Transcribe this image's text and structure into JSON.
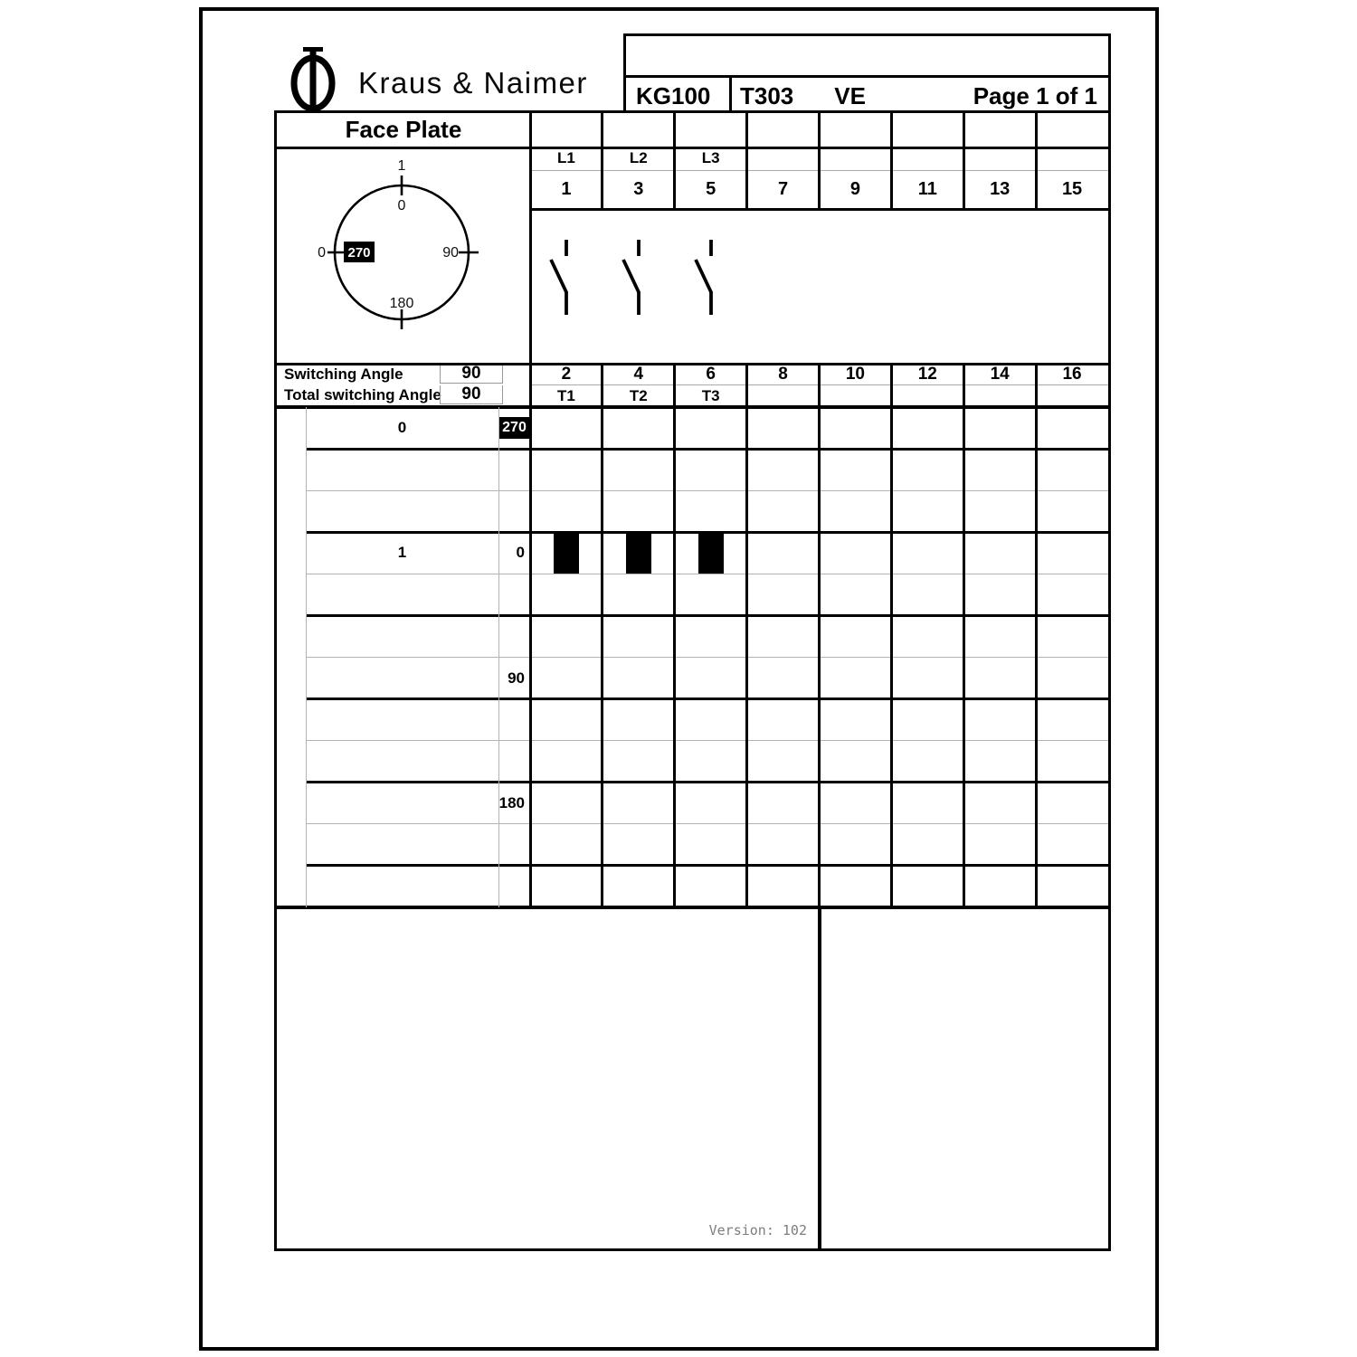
{
  "brand": {
    "name": "Kraus & Naimer"
  },
  "title_block": {
    "model": "KG100",
    "switch_type": "T303",
    "variant": "VE",
    "page": "Page 1 of 1"
  },
  "face_plate": {
    "title": "Face Plate"
  },
  "dial": {
    "position_top": "1",
    "angle_top": "0",
    "angle_right": "90",
    "angle_bottom": "180",
    "angle_left_highlighted": "270",
    "position_left": "0"
  },
  "angles": {
    "switching_label": "Switching Angle",
    "switching_value": "90",
    "total_label": "Total switching Angle",
    "total_value": "90"
  },
  "terminals": {
    "phase_labels": [
      "L1",
      "L2",
      "L3",
      "",
      "",
      "",
      "",
      ""
    ],
    "top_terminals": [
      "1",
      "3",
      "5",
      "7",
      "9",
      "11",
      "13",
      "15"
    ],
    "bottom_terminals": [
      "2",
      "4",
      "6",
      "8",
      "10",
      "12",
      "14",
      "16"
    ],
    "load_labels": [
      "T1",
      "T2",
      "T3",
      "",
      "",
      "",
      "",
      ""
    ],
    "contact_symbol_columns": [
      0,
      1,
      2
    ]
  },
  "switching_diagram": {
    "row_count": 12,
    "positions": [
      {
        "row_index": 0,
        "position_label": "0",
        "angle_label": "270",
        "angle_highlighted": true,
        "closed_contacts": []
      },
      {
        "row_index": 3,
        "position_label": "1",
        "angle_label": "0",
        "angle_highlighted": false,
        "closed_contacts": [
          0,
          1,
          2
        ]
      },
      {
        "row_index": 6,
        "position_label": "",
        "angle_label": "90",
        "angle_highlighted": false,
        "closed_contacts": []
      },
      {
        "row_index": 9,
        "position_label": "",
        "angle_label": "180",
        "angle_highlighted": false,
        "closed_contacts": []
      }
    ]
  },
  "footer": {
    "version": "Version: 102"
  },
  "colors": {
    "ink": "#000000",
    "thin_line": "#aaaaaa",
    "highlight_bg": "#000000",
    "highlight_fg": "#ffffff",
    "version_gray": "#7d7d7d"
  }
}
